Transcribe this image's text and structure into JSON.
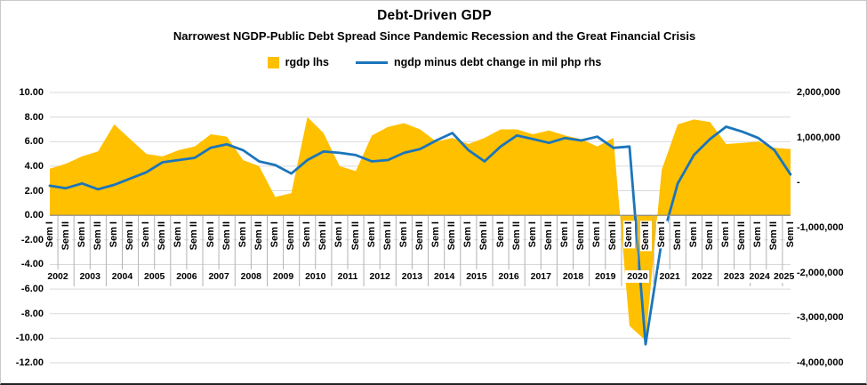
{
  "title": "Debt-Driven GDP",
  "subtitle": "Narrowest NGDP-Public Debt Spread Since Pandemic Recession and the Great Financial Crisis",
  "legend": {
    "items": [
      {
        "label": "rgdp lhs",
        "marker": "area",
        "color": "#FFC000"
      },
      {
        "label": "ngdp minus debt change in mil php rhs",
        "marker": "line",
        "color": "#1B75BB"
      }
    ]
  },
  "left_axis": {
    "labels": [
      "10.00",
      "8.00",
      "6.00",
      "4.00",
      "2.00",
      "0.00",
      "-2.00",
      "-4.00",
      "-6.00",
      "-8.00",
      "-10.00",
      "-12.00"
    ]
  },
  "right_axis": {
    "labels": [
      "2,000,000",
      "1,000,000",
      "-",
      "-1,000,000",
      "-2,000,000",
      "-3,000,000",
      "-4,000,000"
    ]
  },
  "chart_data": {
    "type": "combo",
    "subtypes": [
      "area",
      "line"
    ],
    "grid": true,
    "legend_position": "top",
    "left_axis_range": [
      -12,
      10
    ],
    "right_axis_range": [
      -4000000,
      2000000
    ],
    "categories": [
      {
        "year": "2002",
        "sems": [
          "Sem I",
          "Sem II"
        ]
      },
      {
        "year": "2003",
        "sems": [
          "Sem I",
          "Sem II"
        ]
      },
      {
        "year": "2004",
        "sems": [
          "Sem I",
          "Sem II"
        ]
      },
      {
        "year": "2005",
        "sems": [
          "Sem I",
          "Sem II"
        ]
      },
      {
        "year": "2006",
        "sems": [
          "Sem I",
          "Sem II"
        ]
      },
      {
        "year": "2007",
        "sems": [
          "Sem I",
          "Sem II"
        ]
      },
      {
        "year": "2008",
        "sems": [
          "Sem I",
          "Sem II"
        ]
      },
      {
        "year": "2009",
        "sems": [
          "Sem I",
          "Sem II"
        ]
      },
      {
        "year": "2010",
        "sems": [
          "Sem I",
          "Sem II"
        ]
      },
      {
        "year": "2011",
        "sems": [
          "Sem I",
          "Sem II"
        ]
      },
      {
        "year": "2012",
        "sems": [
          "Sem I",
          "Sem II"
        ]
      },
      {
        "year": "2013",
        "sems": [
          "Sem I",
          "Sem II"
        ]
      },
      {
        "year": "2014",
        "sems": [
          "Sem I",
          "Sem II"
        ]
      },
      {
        "year": "2015",
        "sems": [
          "Sem I",
          "Sem II"
        ]
      },
      {
        "year": "2016",
        "sems": [
          "Sem I",
          "Sem II"
        ]
      },
      {
        "year": "2017",
        "sems": [
          "Sem I",
          "Sem II"
        ]
      },
      {
        "year": "2018",
        "sems": [
          "Sem I",
          "Sem II"
        ]
      },
      {
        "year": "2019",
        "sems": [
          "Sem I",
          "Sem II"
        ]
      },
      {
        "year": "2020",
        "sems": [
          "Sem I",
          "Sem II"
        ]
      },
      {
        "year": "2021",
        "sems": [
          "Sem I",
          "Sem II"
        ]
      },
      {
        "year": "2022",
        "sems": [
          "Sem I",
          "Sem II"
        ]
      },
      {
        "year": "2023",
        "sems": [
          "Sem I",
          "Sem II"
        ]
      },
      {
        "year": "2024",
        "sems": [
          "Sem I",
          "Sem II"
        ]
      },
      {
        "year": "2025",
        "sems": [
          "Sem I"
        ]
      }
    ],
    "series": [
      {
        "name": "rgdp lhs",
        "type": "area",
        "axis": "left",
        "color": "#FFC000",
        "values": [
          3.8,
          4.2,
          4.8,
          5.2,
          7.4,
          6.2,
          5.0,
          4.8,
          5.3,
          5.6,
          6.6,
          6.4,
          4.5,
          4.0,
          1.5,
          1.8,
          8.0,
          6.7,
          4.0,
          3.6,
          6.5,
          7.2,
          7.5,
          7.0,
          6.0,
          6.3,
          5.8,
          6.3,
          7.0,
          7.0,
          6.6,
          6.9,
          6.5,
          6.2,
          5.6,
          6.3,
          -9.0,
          -10.2,
          3.7,
          7.4,
          7.8,
          7.6,
          5.8,
          5.9,
          6.0,
          5.5,
          5.4
        ]
      },
      {
        "name": "ngdp minus debt change in mil php rhs",
        "type": "line",
        "axis": "right",
        "color": "#1B75BB",
        "values": [
          -70000,
          -125000,
          -20000,
          -150000,
          -50000,
          90000,
          230000,
          450000,
          500000,
          550000,
          775000,
          850000,
          720000,
          470000,
          390000,
          200000,
          500000,
          690000,
          660000,
          610000,
          470000,
          500000,
          660000,
          745000,
          935000,
          1100000,
          720000,
          470000,
          800000,
          1045000,
          965000,
          880000,
          990000,
          935000,
          1020000,
          770000,
          800000,
          -3590000,
          -1300000,
          -20000,
          610000,
          965000,
          1240000,
          1130000,
          990000,
          720000,
          180000
        ]
      }
    ]
  }
}
